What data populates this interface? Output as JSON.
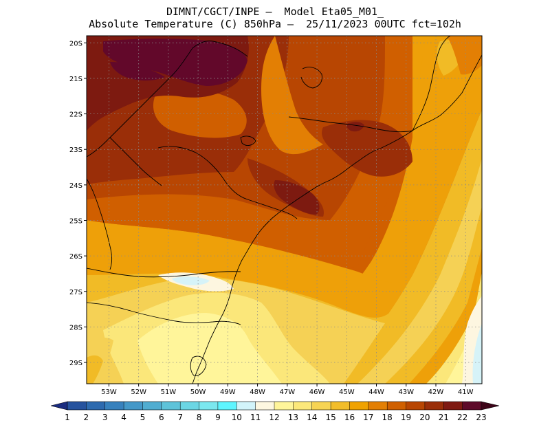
{
  "title": {
    "line1": "DIMNT/CGCT/INPE –  Model Eta05_M01_",
    "line2": "Absolute Temperature (C) 850hPa –  25/11/2023 00UTC fct=102h"
  },
  "map": {
    "lat_labels": [
      "20S",
      "21S",
      "22S",
      "23S",
      "24S",
      "25S",
      "26S",
      "27S",
      "28S",
      "29S"
    ],
    "lon_labels": [
      "53W",
      "52W",
      "51W",
      "50W",
      "49W",
      "48W",
      "47W",
      "46W",
      "45W",
      "44W",
      "43W",
      "42W",
      "41W"
    ],
    "lat_values": [
      -20,
      -21,
      -22,
      -23,
      -24,
      -25,
      -26,
      -27,
      -28,
      -29
    ],
    "lon_values": [
      -53,
      -52,
      -51,
      -50,
      -49,
      -48,
      -47,
      -46,
      -45,
      -44,
      -43,
      -42,
      -41
    ],
    "lat_range": [
      -29.6,
      -19.8
    ],
    "lon_range": [
      -53.75,
      -40.45
    ]
  },
  "colorbar": {
    "labels": [
      "1",
      "2",
      "3",
      "4",
      "5",
      "6",
      "7",
      "8",
      "9",
      "10",
      "11",
      "12",
      "13",
      "14",
      "15",
      "16",
      "17",
      "18",
      "19",
      "20",
      "21",
      "22",
      "23"
    ],
    "colors": [
      "#1e3c8c",
      "#25529e",
      "#2d6aaf",
      "#3781bd",
      "#4498c8",
      "#50add1",
      "#5ec3d9",
      "#6bd6e4",
      "#7be8ef",
      "#5ef5ff",
      "#d2f4fa",
      "#fdf7e0",
      "#fff59a",
      "#fce87a",
      "#f7d454",
      "#f2bd2a",
      "#f0a200",
      "#e37f04",
      "#d06000",
      "#b84602",
      "#9a2e08",
      "#7f1a12",
      "#5e0a2a"
    ],
    "left_arrow_color": "#1a2c80",
    "right_arrow_color": "#3d0418"
  },
  "palette": {
    "t11": "#d6f3f8",
    "t12": "#fdf6e0",
    "t13": "#fff59a",
    "t14": "#fbe77a",
    "t15": "#f5d155",
    "t16": "#f1bb26",
    "t17": "#eea009",
    "t18": "#e37f04",
    "t19": "#d05f00",
    "t20": "#b84602",
    "t21": "#9a2e08",
    "t22": "#7d1a10",
    "t23": "#62082a",
    "coast": "#000000",
    "grid": "#8a8a8a"
  }
}
